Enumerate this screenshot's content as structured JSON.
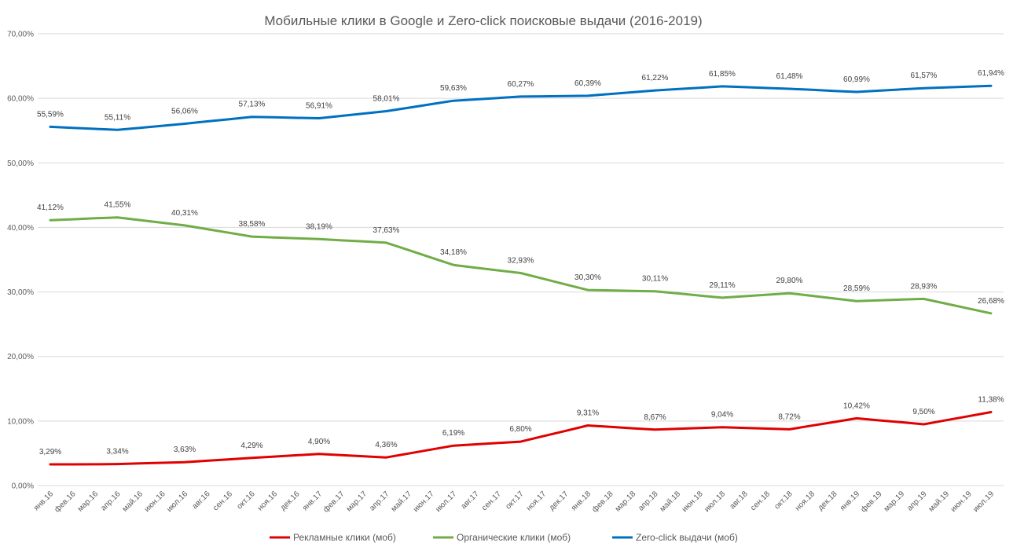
{
  "chart_data": {
    "type": "line",
    "title": "Мобильные клики в Google и Zero-click поисковые выдачи (2016-2019)",
    "xlabel": "",
    "ylabel": "",
    "ylim": [
      0,
      70
    ],
    "y_ticks": [
      0,
      10,
      20,
      30,
      40,
      50,
      60,
      70
    ],
    "y_tick_labels": [
      "0,00%",
      "10,00%",
      "20,00%",
      "30,00%",
      "40,00%",
      "50,00%",
      "60,00%",
      "70,00%"
    ],
    "grid": true,
    "legend_position": "bottom",
    "categories": [
      "янв.16",
      "фев.16",
      "мар.16",
      "апр.16",
      "май.16",
      "июн.16",
      "июл.16",
      "авг.16",
      "сен.16",
      "окт.16",
      "ноя.16",
      "дек.16",
      "янв.17",
      "фев.17",
      "мар.17",
      "апр.17",
      "май.17",
      "июн.17",
      "июл.17",
      "авг.17",
      "сен.17",
      "окт.17",
      "ноя.17",
      "дек.17",
      "янв.18",
      "фев.18",
      "мар.18",
      "апр.18",
      "май.18",
      "июн.18",
      "июл.18",
      "авг.18",
      "сен.18",
      "окт.18",
      "ноя.18",
      "дек.18",
      "янв.19",
      "фев.19",
      "мар.19",
      "апр.19",
      "май.19",
      "июн.19",
      "июл.19"
    ],
    "series": [
      {
        "name": "Рекламные клики (моб)",
        "color": "#e00000",
        "values": [
          3.29,
          3.29,
          3.3,
          3.34,
          3.44,
          3.53,
          3.63,
          3.85,
          4.07,
          4.29,
          4.49,
          4.7,
          4.9,
          4.72,
          4.54,
          4.36,
          4.97,
          5.58,
          6.19,
          6.39,
          6.6,
          6.8,
          7.64,
          8.47,
          9.31,
          9.1,
          8.88,
          8.67,
          8.79,
          8.92,
          9.04,
          8.93,
          8.83,
          8.72,
          9.29,
          9.85,
          10.42,
          10.11,
          9.81,
          9.5,
          10.13,
          10.75,
          11.38
        ],
        "labels": [
          {
            "index": 0,
            "text": "3,29%"
          },
          {
            "index": 3,
            "text": "3,34%"
          },
          {
            "index": 6,
            "text": "3,63%"
          },
          {
            "index": 9,
            "text": "4,29%"
          },
          {
            "index": 12,
            "text": "4,90%"
          },
          {
            "index": 15,
            "text": "4,36%"
          },
          {
            "index": 18,
            "text": "6,19%"
          },
          {
            "index": 21,
            "text": "6,80%"
          },
          {
            "index": 24,
            "text": "9,31%"
          },
          {
            "index": 27,
            "text": "8,67%"
          },
          {
            "index": 30,
            "text": "9,04%"
          },
          {
            "index": 33,
            "text": "8,72%"
          },
          {
            "index": 36,
            "text": "10,42%"
          },
          {
            "index": 39,
            "text": "9,50%"
          },
          {
            "index": 42,
            "text": "11,38%"
          }
        ]
      },
      {
        "name": "Органические клики (моб)",
        "color": "#70ad47",
        "values": [
          41.12,
          41.26,
          41.41,
          41.55,
          41.14,
          40.72,
          40.31,
          39.73,
          39.16,
          38.58,
          38.45,
          38.32,
          38.19,
          38.0,
          37.82,
          37.63,
          36.48,
          35.33,
          34.18,
          33.76,
          33.35,
          32.93,
          32.05,
          31.18,
          30.3,
          30.24,
          30.17,
          30.11,
          29.78,
          29.44,
          29.11,
          29.34,
          29.57,
          29.8,
          29.4,
          28.99,
          28.59,
          28.7,
          28.82,
          28.93,
          28.18,
          27.43,
          26.68
        ],
        "labels": [
          {
            "index": 0,
            "text": "41,12%"
          },
          {
            "index": 3,
            "text": "41,55%"
          },
          {
            "index": 6,
            "text": "40,31%"
          },
          {
            "index": 9,
            "text": "38,58%"
          },
          {
            "index": 12,
            "text": "38,19%"
          },
          {
            "index": 15,
            "text": "37,63%"
          },
          {
            "index": 18,
            "text": "34,18%"
          },
          {
            "index": 21,
            "text": "32,93%"
          },
          {
            "index": 24,
            "text": "30,30%"
          },
          {
            "index": 27,
            "text": "30,11%"
          },
          {
            "index": 30,
            "text": "29,11%"
          },
          {
            "index": 33,
            "text": "29,80%"
          },
          {
            "index": 36,
            "text": "28,59%"
          },
          {
            "index": 39,
            "text": "28,93%"
          },
          {
            "index": 42,
            "text": "26,68%"
          }
        ]
      },
      {
        "name": "Zero-click выдачи (моб)",
        "color": "#0070c0",
        "values": [
          55.59,
          55.43,
          55.27,
          55.11,
          55.43,
          55.74,
          56.06,
          56.42,
          56.77,
          57.13,
          57.06,
          56.98,
          56.91,
          57.28,
          57.64,
          58.01,
          58.55,
          59.09,
          59.63,
          59.84,
          60.06,
          60.27,
          60.31,
          60.35,
          60.39,
          60.67,
          60.94,
          61.22,
          61.43,
          61.64,
          61.85,
          61.73,
          61.6,
          61.48,
          61.32,
          61.15,
          60.99,
          61.18,
          61.38,
          61.57,
          61.69,
          61.82,
          61.94
        ],
        "labels": [
          {
            "index": 0,
            "text": "55,59%"
          },
          {
            "index": 3,
            "text": "55,11%"
          },
          {
            "index": 6,
            "text": "56,06%"
          },
          {
            "index": 9,
            "text": "57,13%"
          },
          {
            "index": 12,
            "text": "56,91%"
          },
          {
            "index": 15,
            "text": "58,01%"
          },
          {
            "index": 18,
            "text": "59,63%"
          },
          {
            "index": 21,
            "text": "60,27%"
          },
          {
            "index": 24,
            "text": "60,39%"
          },
          {
            "index": 27,
            "text": "61,22%"
          },
          {
            "index": 30,
            "text": "61,85%"
          },
          {
            "index": 33,
            "text": "61,48%"
          },
          {
            "index": 36,
            "text": "60,99%"
          },
          {
            "index": 39,
            "text": "61,57%"
          },
          {
            "index": 42,
            "text": "61,94%"
          }
        ]
      }
    ]
  }
}
